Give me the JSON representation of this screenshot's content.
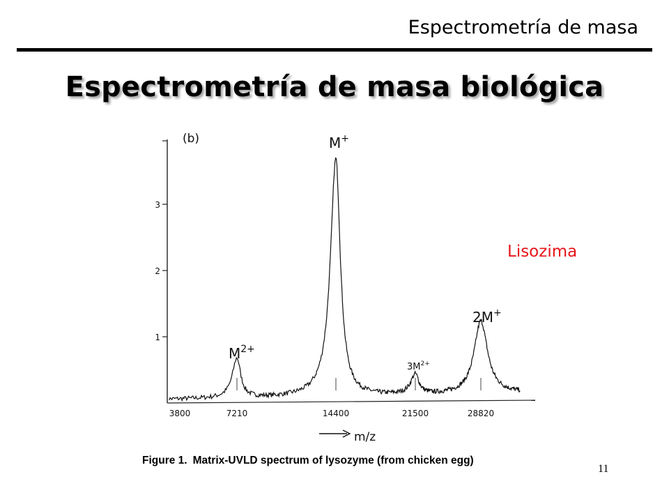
{
  "slide": {
    "header": "Espectrometría de masa",
    "title": "Espectrometría de masa biológica",
    "annotation": "Lisozima",
    "annotation_color": "#e8141a",
    "slide_number": "11"
  },
  "chart_data": {
    "type": "line",
    "panel_label": "(b)",
    "xlabel": "m/z",
    "caption_bold": "Figure 1.",
    "caption_text": "Matrix-UVLD spectrum of lysozyme (from chicken egg)",
    "x_ticks": [
      "3800",
      "7210",
      "14400",
      "21500",
      "28820"
    ],
    "y_ticks": [
      "1",
      "2",
      "3"
    ],
    "ylim": [
      0,
      4
    ],
    "grid": false,
    "peaks": [
      {
        "label": "M",
        "charge": "2+",
        "mz": 7210,
        "intensity": 0.6
      },
      {
        "label": "M",
        "charge": "+",
        "mz": 14400,
        "intensity": 3.6
      },
      {
        "label": "3M",
        "charge": "2+",
        "mz": 21500,
        "intensity": 0.3
      },
      {
        "label": "2M",
        "charge": "+",
        "mz": 28820,
        "intensity": 1.1
      }
    ]
  }
}
